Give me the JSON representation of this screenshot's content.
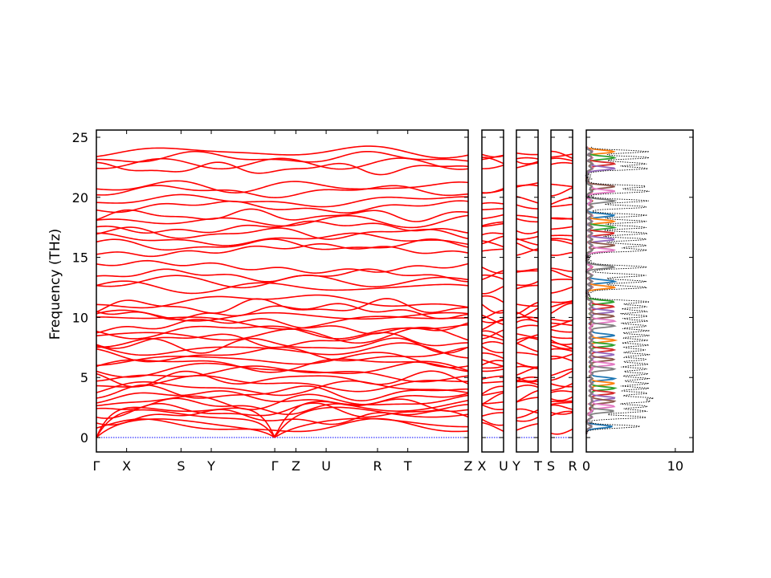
{
  "figure": {
    "ylabel": "Frequency (THz)",
    "colors": {
      "bands": "#ff0000",
      "zero_line": "#0000ff",
      "total_dos": "#000000",
      "pdos": [
        "#1f77b4",
        "#ff7f0e",
        "#2ca02c",
        "#d62728",
        "#9467bd",
        "#8c564b",
        "#e377c2",
        "#7f7f7f"
      ]
    }
  },
  "chart_data": [
    {
      "type": "line",
      "name": "phonon-band-structure",
      "ylabel": "Frequency (THz)",
      "ylim": [
        -1.2,
        25.6
      ],
      "yticks": [
        0,
        5,
        10,
        15,
        20,
        25
      ],
      "segments": [
        {
          "path": [
            "Γ",
            "X",
            "S",
            "Y",
            "Γ",
            "Z",
            "U",
            "R",
            "T",
            "Z"
          ],
          "xpos": [
            0,
            1.0,
            2.8,
            3.8,
            5.9,
            6.6,
            7.6,
            9.3,
            10.3,
            12.3
          ]
        },
        {
          "path": [
            "X",
            "U"
          ],
          "xpos": [
            0,
            1
          ]
        },
        {
          "path": [
            "Y",
            "T"
          ],
          "xpos": [
            0,
            1
          ]
        },
        {
          "path": [
            "S",
            "R"
          ],
          "xpos": [
            0,
            1
          ]
        }
      ],
      "band_levels": [
        0.9,
        1.7,
        2.2,
        2.6,
        3.0,
        3.3,
        3.7,
        4.1,
        4.5,
        4.9,
        5.3,
        5.7,
        6.1,
        6.5,
        6.9,
        7.3,
        7.7,
        8.1,
        8.5,
        8.9,
        9.3,
        9.7,
        10.1,
        10.5,
        10.9,
        11.3,
        12.5,
        13.0,
        13.5,
        14.2,
        15.6,
        16.0,
        16.5,
        17.0,
        17.5,
        18.0,
        18.5,
        19.2,
        19.7,
        20.5,
        20.9,
        22.4,
        22.8,
        23.3,
        23.8
      ]
    },
    {
      "type": "line",
      "name": "phonon-dos",
      "xlim": [
        0,
        12
      ],
      "xticks": [
        0,
        10
      ],
      "ylim": [
        -1.2,
        25.6
      ],
      "series_count": 9
    }
  ]
}
